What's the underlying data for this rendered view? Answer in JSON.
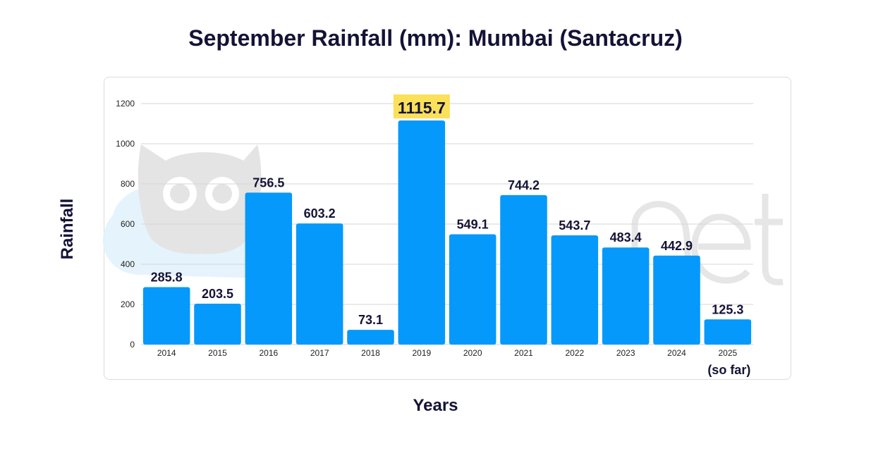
{
  "chart_data": {
    "type": "bar",
    "title": "September Rainfall (mm): Mumbai (Santacruz)",
    "xlabel": "Years",
    "ylabel": "Rainfall",
    "categories": [
      "2014",
      "2015",
      "2016",
      "2017",
      "2018",
      "2019",
      "2020",
      "2021",
      "2022",
      "2023",
      "2024",
      "2025"
    ],
    "category_note": {
      "index": 11,
      "text": "(so far)"
    },
    "values": [
      285.8,
      203.5,
      756.5,
      603.2,
      73.1,
      1115.7,
      549.1,
      744.2,
      543.7,
      483.4,
      442.9,
      125.3
    ],
    "data_labels": [
      "285.8",
      "203.5",
      "756.5",
      "603.2",
      "73.1",
      "1115.7",
      "549.1",
      "744.2",
      "543.7",
      "483.4",
      "442.9",
      "125.3"
    ],
    "ylim": [
      0,
      1200
    ],
    "yticks": [
      0,
      200,
      400,
      600,
      800,
      1000,
      1200
    ],
    "highlight_index": 5,
    "grid": true,
    "legend": "none",
    "colors": {
      "bar": "#0599fb",
      "highlight_label_bg": "#fbe05a",
      "grid": "#d6d6d6",
      "text": "#141336"
    }
  },
  "watermark": {
    "icon": "owl-logo-icon"
  }
}
